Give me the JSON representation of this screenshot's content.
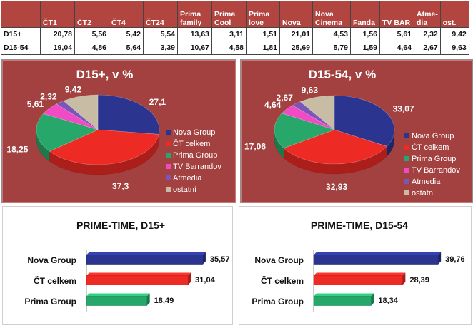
{
  "table": {
    "headers": [
      "",
      "ČT1",
      "ČT2",
      "ČT4",
      "ČT24",
      "Prima family",
      "Prima Cool",
      "Prima love",
      "Nova",
      "Nova Cinema",
      "Fanda",
      "TV BAR",
      "Atme-dia",
      "ost."
    ],
    "rows": [
      {
        "label": "D15+",
        "values": [
          "20,78",
          "5,56",
          "5,42",
          "5,54",
          "13,63",
          "3,11",
          "1,51",
          "21,01",
          "4,53",
          "1,56",
          "5,61",
          "2,32",
          "9,42"
        ]
      },
      {
        "label": "D15-54",
        "values": [
          "19,04",
          "4,86",
          "5,64",
          "3,39",
          "10,67",
          "4,58",
          "1,81",
          "25,69",
          "5,79",
          "1,59",
          "4,64",
          "2,67",
          "9,63"
        ]
      }
    ]
  },
  "colors": {
    "header_bg": "#b2453f",
    "pie_panel_bg": "#a2413f",
    "nova": "#2b3590",
    "ct": "#ee2a24",
    "prima": "#27a86a",
    "barrandov": "#f04bc4",
    "atmedia": "#7b55b8",
    "ostatni": "#c8bca4"
  },
  "chart_data": [
    {
      "type": "pie",
      "title": "D15+, v %",
      "labels": [
        "Nova Group",
        "ČT celkem",
        "Prima Group",
        "TV Barrandov",
        "Atmedia",
        "ostatní"
      ],
      "values": [
        27.1,
        37.3,
        18.25,
        5.61,
        2.32,
        9.42
      ],
      "value_labels": [
        "27,1",
        "37,3",
        "18,25",
        "5,61",
        "2,32",
        "9,42"
      ],
      "legend": "right"
    },
    {
      "type": "pie",
      "title": "D15-54, v %",
      "labels": [
        "Nova Group",
        "ČT celkem",
        "Prima Group",
        "TV Barrandov",
        "Atmedia",
        "ostatní"
      ],
      "values": [
        33.07,
        32.93,
        17.06,
        4.64,
        2.67,
        9.63
      ],
      "value_labels": [
        "33,07",
        "32,93",
        "17,06",
        "4,64",
        "2,67",
        "9,63"
      ],
      "legend": "right"
    },
    {
      "type": "bar",
      "orientation": "horizontal",
      "title": "PRIME-TIME, D15+",
      "categories": [
        "Nova Group",
        "ČT celkem",
        "Prima Group"
      ],
      "values": [
        35.57,
        31.04,
        18.49
      ],
      "value_labels": [
        "35,57",
        "31,04",
        "18,49"
      ],
      "xlim": [
        0,
        50
      ]
    },
    {
      "type": "bar",
      "orientation": "horizontal",
      "title": "PRIME-TIME, D15-54",
      "categories": [
        "Nova Group",
        "ČT celkem",
        "Prima Group"
      ],
      "values": [
        39.76,
        28.39,
        18.34
      ],
      "value_labels": [
        "39,76",
        "28,39",
        "18,34"
      ],
      "xlim": [
        0,
        50
      ]
    }
  ]
}
